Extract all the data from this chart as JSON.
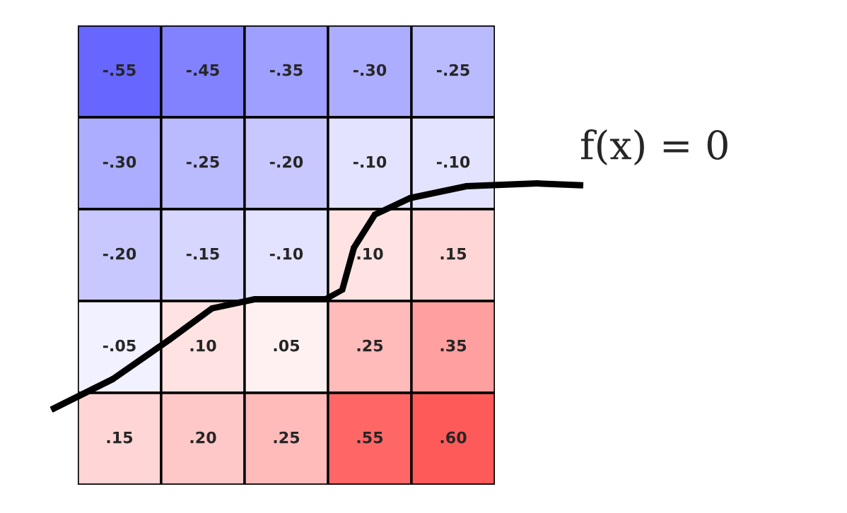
{
  "chart_data": {
    "type": "heatmap",
    "categories": [
      null,
      null,
      null,
      null,
      null
    ],
    "y_categories": [
      null,
      null,
      null,
      null,
      null
    ],
    "cells": [
      [
        -0.55,
        -0.45,
        -0.35,
        -0.3,
        -0.25
      ],
      [
        -0.3,
        -0.25,
        -0.2,
        -0.1,
        -0.1
      ],
      [
        -0.2,
        -0.15,
        -0.1,
        0.1,
        0.15
      ],
      [
        -0.05,
        0.1,
        0.05,
        0.25,
        0.35
      ],
      [
        0.15,
        0.2,
        0.25,
        0.55,
        0.6
      ]
    ],
    "cell_labels": [
      [
        "-.55",
        "-.45",
        "-.35",
        "-.30",
        "-.25"
      ],
      [
        "-.30",
        "-.25",
        "-.20",
        "-.10",
        "-.10"
      ],
      [
        "-.20",
        "-.15",
        "-.10",
        ".10",
        ".15"
      ],
      [
        "-.05",
        ".10",
        ".05",
        ".25",
        ".35"
      ],
      [
        ".15",
        ".20",
        ".25",
        ".55",
        ".60"
      ]
    ],
    "annotations": [
      "f(x) = 0"
    ]
  }
}
